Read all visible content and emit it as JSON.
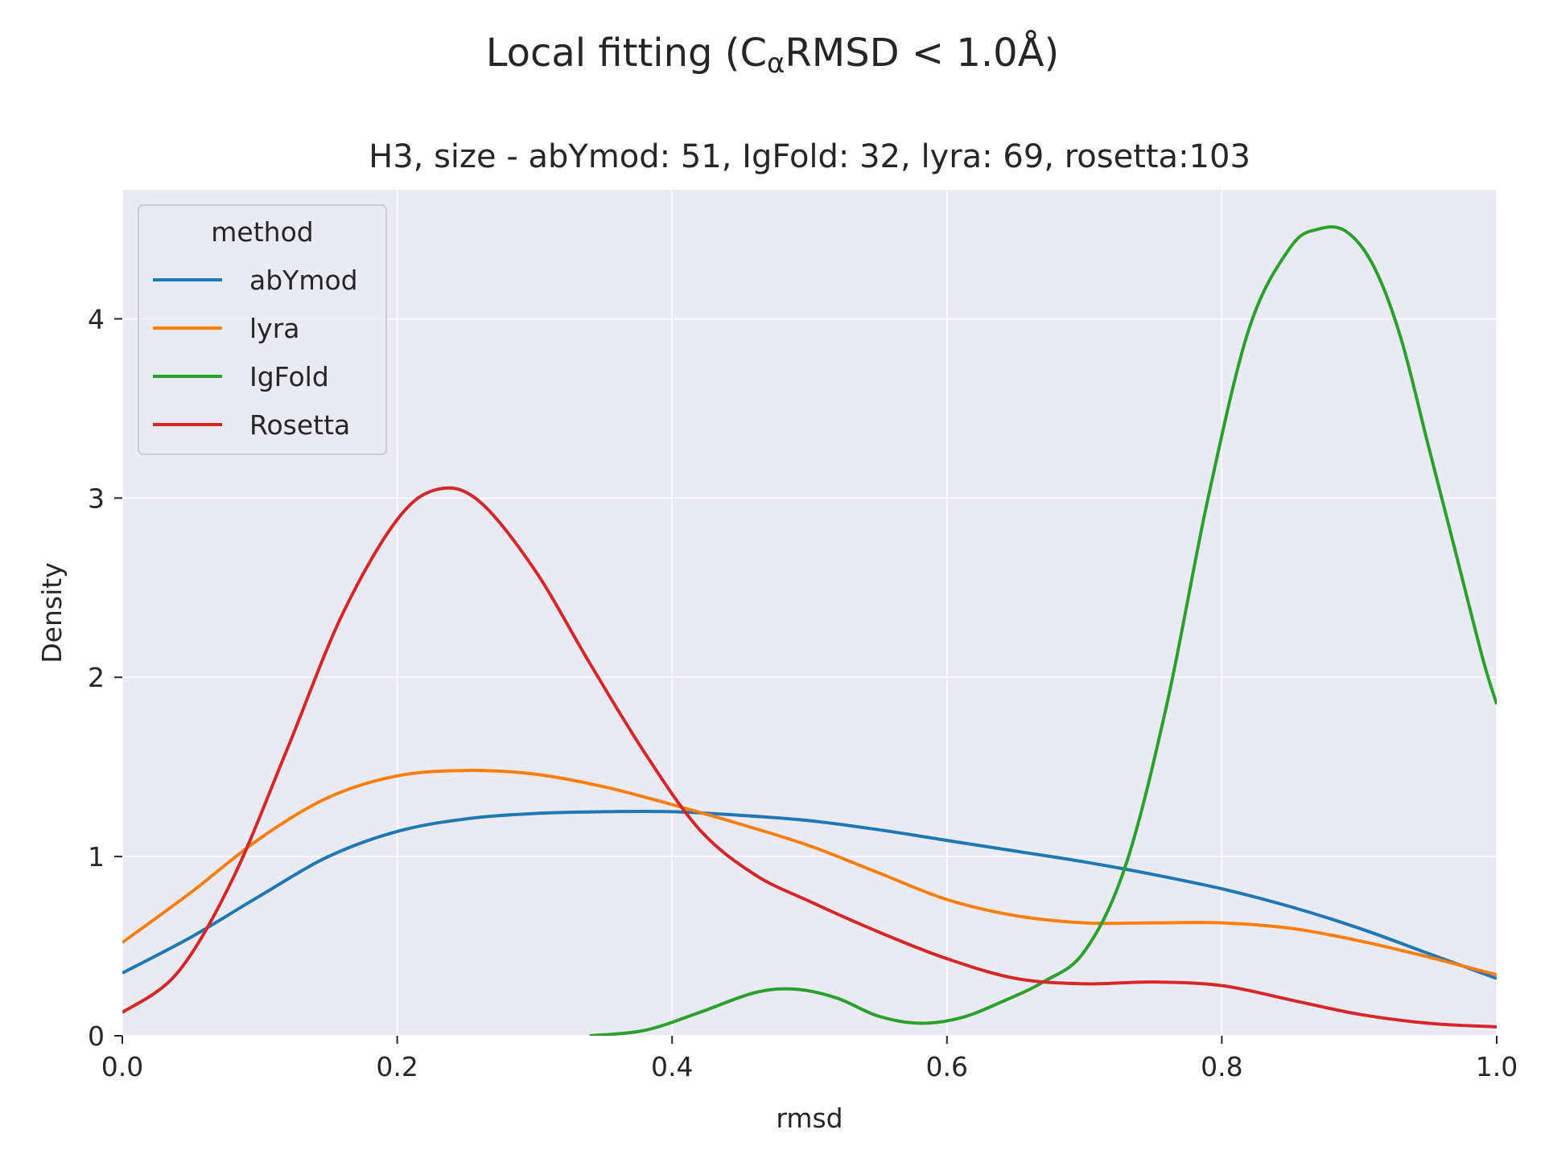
{
  "chart_data": {
    "type": "line",
    "title": "Local fitting (C",
    "title_subscript": "α",
    "title_rest": "RMSD  < 1.0Å)",
    "subtitle": "H3, size - abYmod: 51, IgFold: 32, lyra: 69, rosetta:103",
    "xlabel": "rmsd",
    "ylabel": "Density",
    "xlim": [
      0.0,
      1.0
    ],
    "ylim": [
      0,
      4.72
    ],
    "xticks": [
      "0.0",
      "0.2",
      "0.4",
      "0.6",
      "0.8",
      "1.0"
    ],
    "yticks": [
      "0",
      "1",
      "2",
      "3",
      "4"
    ],
    "grid": true,
    "legend": {
      "title": "method",
      "placement": "top-left"
    },
    "series": [
      {
        "name": "abYmod",
        "color": "#1f77b4",
        "x": [
          0.0,
          0.05,
          0.1,
          0.15,
          0.2,
          0.25,
          0.3,
          0.35,
          0.4,
          0.45,
          0.5,
          0.55,
          0.6,
          0.65,
          0.7,
          0.75,
          0.8,
          0.85,
          0.9,
          0.95,
          1.0
        ],
        "y": [
          0.35,
          0.55,
          0.78,
          1.0,
          1.14,
          1.21,
          1.24,
          1.25,
          1.25,
          1.23,
          1.2,
          1.15,
          1.09,
          1.03,
          0.97,
          0.9,
          0.82,
          0.72,
          0.6,
          0.46,
          0.32
        ]
      },
      {
        "name": "lyra",
        "color": "#ff7f0e",
        "x": [
          0.0,
          0.05,
          0.1,
          0.15,
          0.2,
          0.25,
          0.3,
          0.35,
          0.4,
          0.45,
          0.5,
          0.55,
          0.6,
          0.65,
          0.7,
          0.75,
          0.8,
          0.85,
          0.9,
          0.95,
          1.0
        ],
        "y": [
          0.52,
          0.8,
          1.1,
          1.33,
          1.45,
          1.48,
          1.46,
          1.39,
          1.29,
          1.18,
          1.06,
          0.91,
          0.76,
          0.67,
          0.63,
          0.63,
          0.63,
          0.6,
          0.53,
          0.44,
          0.34
        ]
      },
      {
        "name": "IgFold",
        "color": "#2ca02c",
        "x": [
          0.34,
          0.38,
          0.42,
          0.46,
          0.49,
          0.52,
          0.55,
          0.58,
          0.61,
          0.64,
          0.67,
          0.7,
          0.73,
          0.76,
          0.79,
          0.82,
          0.85,
          0.87,
          0.89,
          0.91,
          0.93,
          0.95,
          0.97,
          0.99,
          1.0
        ],
        "y": [
          0.0,
          0.03,
          0.13,
          0.24,
          0.26,
          0.21,
          0.11,
          0.07,
          0.1,
          0.19,
          0.3,
          0.47,
          0.95,
          1.85,
          3.0,
          3.95,
          4.4,
          4.5,
          4.49,
          4.3,
          3.9,
          3.3,
          2.7,
          2.1,
          1.85
        ]
      },
      {
        "name": "Rosetta",
        "color": "#d62728",
        "x": [
          0.0,
          0.04,
          0.08,
          0.12,
          0.16,
          0.2,
          0.23,
          0.26,
          0.3,
          0.34,
          0.38,
          0.42,
          0.46,
          0.5,
          0.55,
          0.6,
          0.65,
          0.7,
          0.75,
          0.8,
          0.85,
          0.9,
          0.95,
          1.0
        ],
        "y": [
          0.13,
          0.35,
          0.87,
          1.6,
          2.35,
          2.88,
          3.05,
          2.98,
          2.6,
          2.08,
          1.58,
          1.15,
          0.9,
          0.75,
          0.58,
          0.43,
          0.32,
          0.29,
          0.3,
          0.28,
          0.2,
          0.12,
          0.07,
          0.05
        ]
      }
    ]
  }
}
